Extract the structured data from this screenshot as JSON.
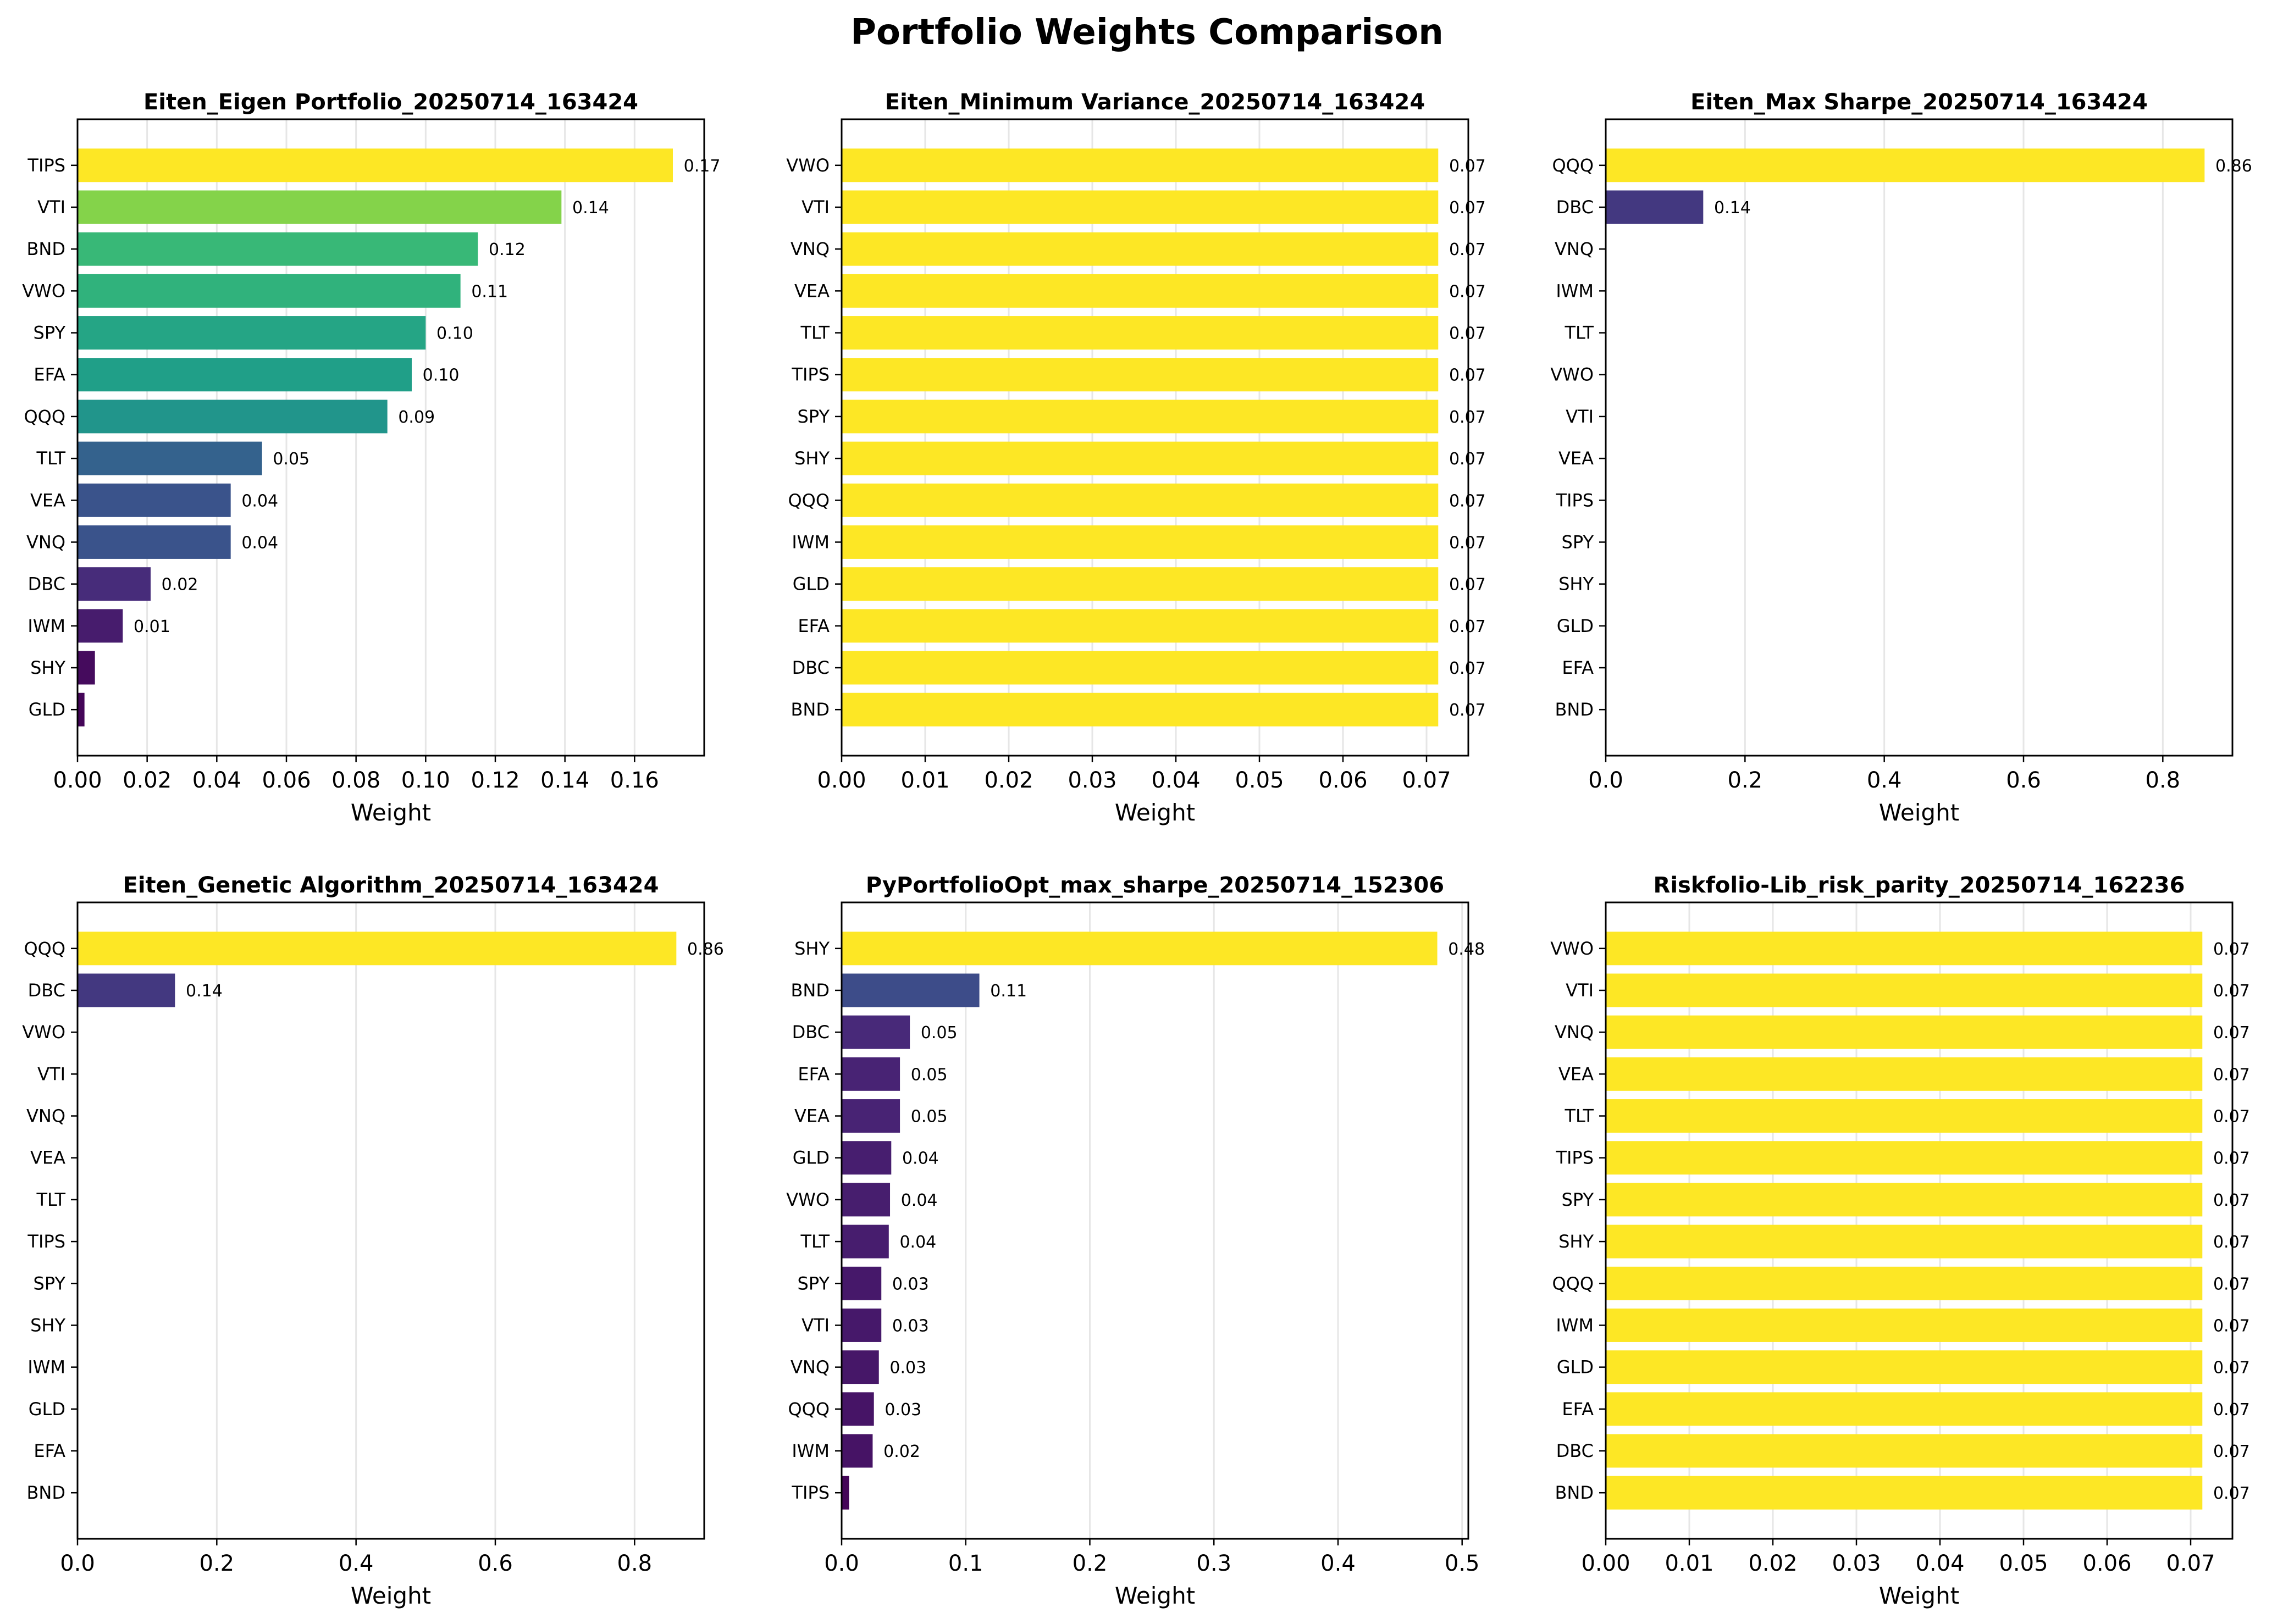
{
  "figure_title": "Portfolio Weights Comparison",
  "colors": {
    "viridis_dark": "#440154",
    "viridis_mid": "#21918c",
    "viridis_yellow": "#fde725",
    "gridline": "#e6e6e6"
  },
  "chart_data": [
    {
      "type": "bar",
      "orientation": "horizontal",
      "title": "Eiten_Eigen Portfolio_20250714_163424",
      "xlabel": "Weight",
      "xlim": [
        0,
        0.18
      ],
      "xticks": [
        0.0,
        0.02,
        0.04,
        0.06,
        0.08,
        0.1,
        0.12,
        0.14,
        0.16
      ],
      "tick_decimals": 2,
      "grid": "x",
      "categories": [
        "TIPS",
        "VTI",
        "BND",
        "VWO",
        "SPY",
        "EFA",
        "QQQ",
        "TLT",
        "VEA",
        "VNQ",
        "DBC",
        "IWM",
        "SHY",
        "GLD"
      ],
      "values": [
        0.171,
        0.139,
        0.115,
        0.11,
        0.1,
        0.096,
        0.089,
        0.053,
        0.044,
        0.044,
        0.021,
        0.013,
        0.005,
        0.002
      ],
      "data_labels": [
        "0.17",
        "0.14",
        "0.12",
        "0.11",
        "0.10",
        "0.10",
        "0.09",
        "0.05",
        "0.04",
        "0.04",
        "0.02",
        "0.01",
        "",
        ""
      ]
    },
    {
      "type": "bar",
      "orientation": "horizontal",
      "title": "Eiten_Minimum Variance_20250714_163424",
      "xlabel": "Weight",
      "xlim": [
        0,
        0.075
      ],
      "xticks": [
        0.0,
        0.01,
        0.02,
        0.03,
        0.04,
        0.05,
        0.06,
        0.07
      ],
      "tick_decimals": 2,
      "grid": "x",
      "categories": [
        "VWO",
        "VTI",
        "VNQ",
        "VEA",
        "TLT",
        "TIPS",
        "SPY",
        "SHY",
        "QQQ",
        "IWM",
        "GLD",
        "EFA",
        "DBC",
        "BND"
      ],
      "values": [
        0.0714,
        0.0714,
        0.0714,
        0.0714,
        0.0714,
        0.0714,
        0.0714,
        0.0714,
        0.0714,
        0.0714,
        0.0714,
        0.0714,
        0.0714,
        0.0714
      ],
      "data_labels": [
        "0.07",
        "0.07",
        "0.07",
        "0.07",
        "0.07",
        "0.07",
        "0.07",
        "0.07",
        "0.07",
        "0.07",
        "0.07",
        "0.07",
        "0.07",
        "0.07"
      ]
    },
    {
      "type": "bar",
      "orientation": "horizontal",
      "title": "Eiten_Max Sharpe_20250714_163424",
      "xlabel": "Weight",
      "xlim": [
        0,
        0.9
      ],
      "xticks": [
        0.0,
        0.2,
        0.4,
        0.6,
        0.8
      ],
      "tick_decimals": 1,
      "grid": "x",
      "categories": [
        "QQQ",
        "DBC",
        "VNQ",
        "IWM",
        "TLT",
        "VWO",
        "VTI",
        "VEA",
        "TIPS",
        "SPY",
        "SHY",
        "GLD",
        "EFA",
        "BND"
      ],
      "values": [
        0.86,
        0.14,
        0,
        0,
        0,
        0,
        0,
        0,
        0,
        0,
        0,
        0,
        0,
        0
      ],
      "data_labels": [
        "0.86",
        "0.14",
        "",
        "",
        "",
        "",
        "",
        "",
        "",
        "",
        "",
        "",
        "",
        ""
      ]
    },
    {
      "type": "bar",
      "orientation": "horizontal",
      "title": "Eiten_Genetic Algorithm_20250714_163424",
      "xlabel": "Weight",
      "xlim": [
        0,
        0.9
      ],
      "xticks": [
        0.0,
        0.2,
        0.4,
        0.6,
        0.8
      ],
      "tick_decimals": 1,
      "grid": "x",
      "categories": [
        "QQQ",
        "DBC",
        "VWO",
        "VTI",
        "VNQ",
        "VEA",
        "TLT",
        "TIPS",
        "SPY",
        "SHY",
        "IWM",
        "GLD",
        "EFA",
        "BND"
      ],
      "values": [
        0.86,
        0.14,
        0,
        0,
        0,
        0,
        0,
        0,
        0,
        0,
        0,
        0,
        0,
        0
      ],
      "data_labels": [
        "0.86",
        "0.14",
        "",
        "",
        "",
        "",
        "",
        "",
        "",
        "",
        "",
        "",
        "",
        ""
      ]
    },
    {
      "type": "bar",
      "orientation": "horizontal",
      "title": "PyPortfolioOpt_max_sharpe_20250714_152306",
      "xlabel": "Weight",
      "xlim": [
        0,
        0.505
      ],
      "xticks": [
        0.0,
        0.1,
        0.2,
        0.3,
        0.4,
        0.5
      ],
      "tick_decimals": 1,
      "grid": "x",
      "categories": [
        "SHY",
        "BND",
        "DBC",
        "EFA",
        "VEA",
        "GLD",
        "VWO",
        "TLT",
        "SPY",
        "VTI",
        "VNQ",
        "QQQ",
        "IWM",
        "TIPS"
      ],
      "values": [
        0.48,
        0.111,
        0.055,
        0.047,
        0.047,
        0.04,
        0.039,
        0.038,
        0.032,
        0.032,
        0.03,
        0.026,
        0.025,
        0.006
      ],
      "data_labels": [
        "0.48",
        "0.11",
        "0.05",
        "0.05",
        "0.05",
        "0.04",
        "0.04",
        "0.04",
        "0.03",
        "0.03",
        "0.03",
        "0.03",
        "0.02",
        ""
      ]
    },
    {
      "type": "bar",
      "orientation": "horizontal",
      "title": "Riskfolio-Lib_risk_parity_20250714_162236",
      "xlabel": "Weight",
      "xlim": [
        0,
        0.075
      ],
      "xticks": [
        0.0,
        0.01,
        0.02,
        0.03,
        0.04,
        0.05,
        0.06,
        0.07
      ],
      "tick_decimals": 2,
      "grid": "x",
      "categories": [
        "VWO",
        "VTI",
        "VNQ",
        "VEA",
        "TLT",
        "TIPS",
        "SPY",
        "SHY",
        "QQQ",
        "IWM",
        "GLD",
        "EFA",
        "DBC",
        "BND"
      ],
      "values": [
        0.0714,
        0.0714,
        0.0714,
        0.0714,
        0.0714,
        0.0714,
        0.0714,
        0.0714,
        0.0714,
        0.0714,
        0.0714,
        0.0714,
        0.0714,
        0.0714
      ],
      "data_labels": [
        "0.07",
        "0.07",
        "0.07",
        "0.07",
        "0.07",
        "0.07",
        "0.07",
        "0.07",
        "0.07",
        "0.07",
        "0.07",
        "0.07",
        "0.07",
        "0.07"
      ]
    }
  ]
}
